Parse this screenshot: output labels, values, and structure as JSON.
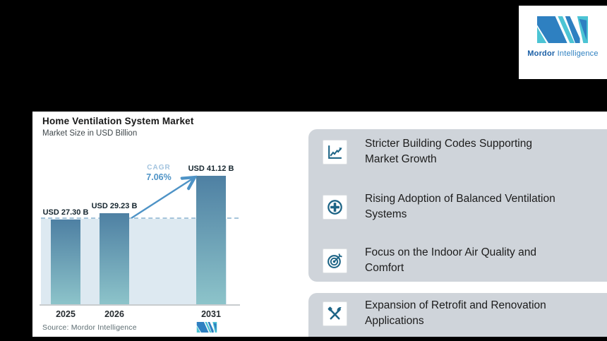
{
  "brand": {
    "name_bold": "Mordor",
    "name_light": "Intelligence"
  },
  "chart": {
    "title": "Home Ventilation System Market",
    "subtitle": "Market Size in USD Billion",
    "cagr_label": "CAGR",
    "cagr_value": "7.06%",
    "source": "Source: Mordor Intelligence"
  },
  "chart_data": {
    "type": "bar",
    "title": "Home Ventilation System Market",
    "ylabel": "Market Size in USD Billion",
    "categories": [
      "2025",
      "2026",
      "2031"
    ],
    "values": [
      27.3,
      29.23,
      41.12
    ],
    "labels": [
      "USD 27.30 B",
      "USD 29.23 B",
      "USD 41.12 B"
    ],
    "cagr_percent": 7.06,
    "dashed_baseline_value": 27.3,
    "ylim": [
      0,
      45
    ],
    "grid": false,
    "legend": "none",
    "annotations": [
      "CAGR 7.06% growth arrow from 2026 bar to 2031 bar",
      "dashed reference line at 2025 value",
      "shaded area under reference line"
    ],
    "source": "Source: Mordor Intelligence"
  },
  "colors": {
    "bar_top": "#4e80a3",
    "bar_bottom": "#8dc4ca",
    "area": "#dde9f1",
    "dashed": "#a6c5db",
    "accent": "#4e93c6",
    "cagr_light": "#a3c4df",
    "card": "#cfd4da",
    "icon": "#1d6486",
    "brand_blue": "#2e80c1",
    "brand_teal": "#4cc4d4",
    "brand_dark": "#1a5fa6"
  },
  "drivers": {
    "items": [
      {
        "icon": "growth-chart-icon",
        "line1": "Stricter Building Codes Supporting",
        "line2": "Market Growth"
      },
      {
        "icon": "plus-circle-icon",
        "line1": "Rising Adoption of Balanced Ventilation",
        "line2": "Systems"
      },
      {
        "icon": "target-icon",
        "line1": "Focus on the Indoor Air Quality and",
        "line2": "Comfort"
      },
      {
        "icon": "tools-icon",
        "line1": "Expansion of Retrofit and Renovation",
        "line2": "Applications"
      }
    ]
  }
}
